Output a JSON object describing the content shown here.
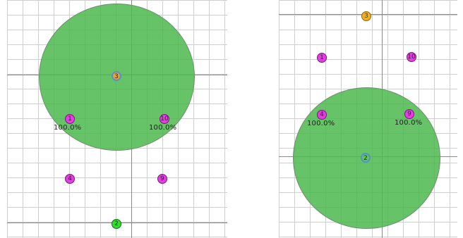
{
  "left_view": {
    "nodes": {
      "center": "3",
      "n1": "1",
      "n10": "10",
      "n4": "4",
      "n9": "9",
      "n2": "2"
    },
    "labels": {
      "n1_pct": "100.0%",
      "n10_pct": "100.0%"
    }
  },
  "right_view": {
    "nodes": {
      "top": "3",
      "n1": "1",
      "n10": "10",
      "n4": "4",
      "n9": "9",
      "center": "2"
    },
    "labels": {
      "n4_pct": "100.0%",
      "n9_pct": "100.0%"
    }
  },
  "colors": {
    "zone": "#4cb84c",
    "node_magenta": "#e23ee2",
    "node_orange": "#f0b020",
    "node_green": "#2ee02e",
    "grid": "#cfcfcf"
  }
}
